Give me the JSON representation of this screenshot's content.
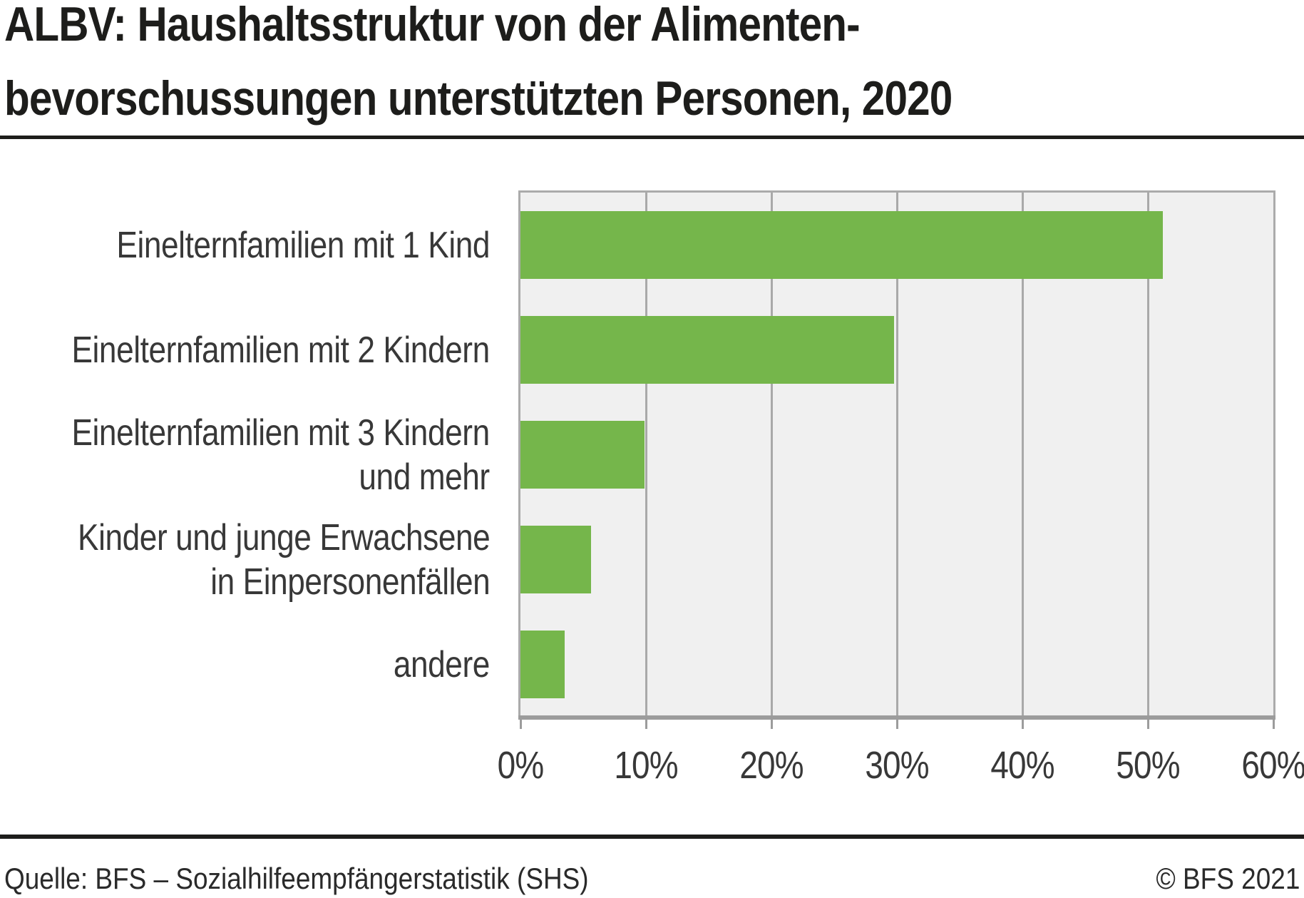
{
  "title": {
    "line1": "ALBV: Haushaltsstruktur von der Alimenten-",
    "line2": "bevorschussungen unterstützten Personen, 2020"
  },
  "footer": {
    "source": "Quelle: BFS – Sozialhilfeempfängerstatistik (SHS)",
    "copyright": "© BFS 2021"
  },
  "chart_data": {
    "type": "bar",
    "orientation": "horizontal",
    "title": "ALBV: Haushaltsstruktur von der Alimentenbevorschussungen unterstützten Personen, 2020",
    "categories": [
      "Einelternfamilien mit 1 Kind",
      "Einelternfamilien mit 2 Kindern",
      "Einelternfamilien mit 3 Kindern und mehr",
      "Kinder und junge Erwachsene in Einpersonenfällen",
      "andere"
    ],
    "category_label_lines": [
      [
        "Einelternfamilien mit 1 Kind"
      ],
      [
        "Einelternfamilien mit 2 Kindern"
      ],
      [
        "Einelternfamilien mit 3 Kindern",
        "und mehr"
      ],
      [
        "Kinder und junge Erwachsene",
        "in Einpersonenfällen"
      ],
      [
        "andere"
      ]
    ],
    "values": [
      51.2,
      29.8,
      9.9,
      5.6,
      3.5
    ],
    "unit": "%",
    "xlabel": "",
    "ylabel": "",
    "xlim": [
      0,
      60
    ],
    "x_tick_values": [
      0,
      10,
      20,
      30,
      40,
      50,
      60
    ],
    "x_ticks": [
      "0%",
      "10%",
      "20%",
      "30%",
      "40%",
      "50%",
      "60%"
    ],
    "grid": true,
    "legend": false,
    "bar_color": "#75B64B",
    "plot_bg": "#F0F0F0",
    "grid_color": "#A9A9A9"
  }
}
